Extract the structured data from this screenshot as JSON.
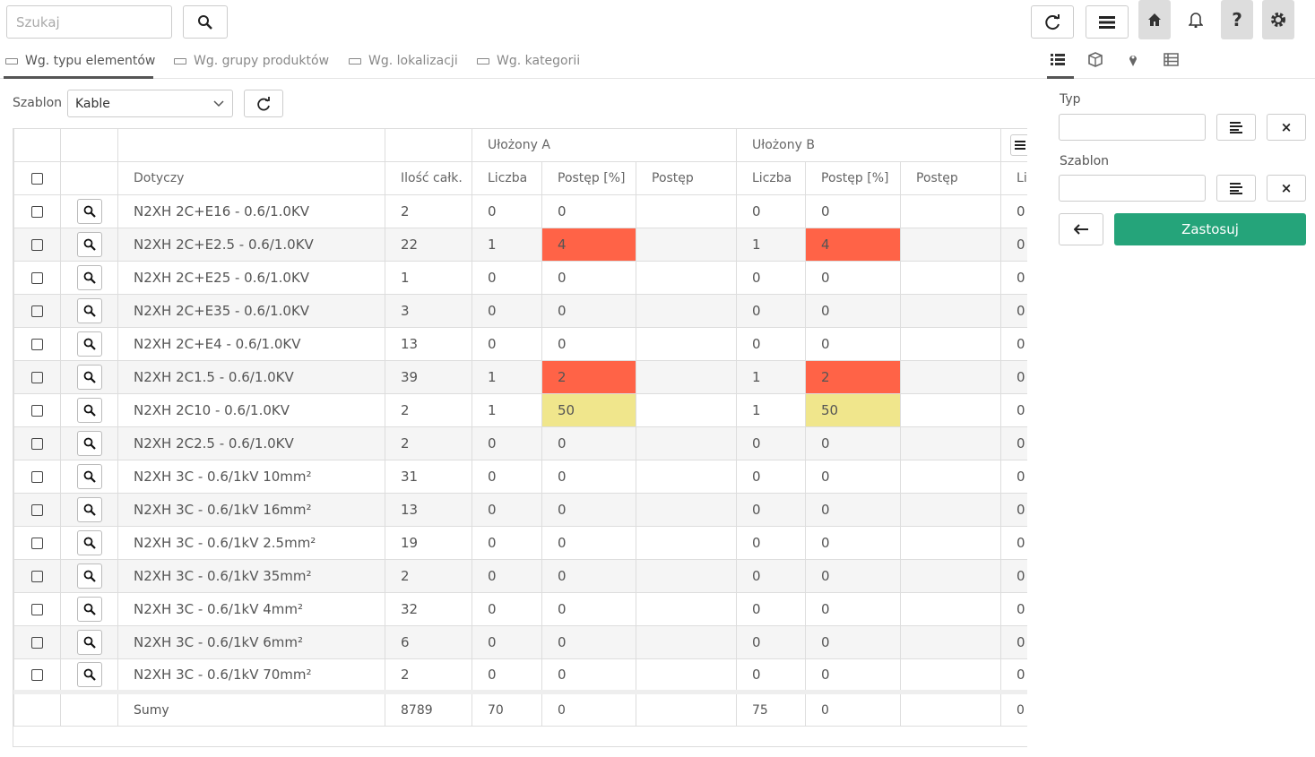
{
  "search": {
    "placeholder": "Szukaj"
  },
  "tabs": [
    "Wg. typu elementów",
    "Wg. grupy produktów",
    "Wg. lokalizacji",
    "Wg. kategorii"
  ],
  "template": {
    "label": "Szablon",
    "value": "Kable"
  },
  "table": {
    "group_headers": [
      "Ułożony A",
      "Ułożony B"
    ],
    "columns": [
      "Dotyczy",
      "Ilość całk.",
      "Liczba",
      "Postęp [%]",
      "Postęp",
      "Liczba",
      "Postęp [%]",
      "Postęp",
      "Li"
    ],
    "rows": [
      {
        "name": "N2XH 2C+E16 - 0.6/1.0KV",
        "total": 2,
        "a_count": 0,
        "a_pct": 0,
        "b_count": 0,
        "b_pct": 0,
        "next": 0
      },
      {
        "name": "N2XH 2C+E2.5 - 0.6/1.0KV",
        "total": 22,
        "a_count": 1,
        "a_pct": 4,
        "b_count": 1,
        "b_pct": 4,
        "next": 0
      },
      {
        "name": "N2XH 2C+E25 - 0.6/1.0KV",
        "total": 1,
        "a_count": 0,
        "a_pct": 0,
        "b_count": 0,
        "b_pct": 0,
        "next": 0
      },
      {
        "name": "N2XH 2C+E35 - 0.6/1.0KV",
        "total": 3,
        "a_count": 0,
        "a_pct": 0,
        "b_count": 0,
        "b_pct": 0,
        "next": 0
      },
      {
        "name": "N2XH 2C+E4 - 0.6/1.0KV",
        "total": 13,
        "a_count": 0,
        "a_pct": 0,
        "b_count": 0,
        "b_pct": 0,
        "next": 0
      },
      {
        "name": "N2XH 2C1.5 - 0.6/1.0KV",
        "total": 39,
        "a_count": 1,
        "a_pct": 2,
        "b_count": 1,
        "b_pct": 2,
        "next": 0
      },
      {
        "name": "N2XH 2C10 - 0.6/1.0KV",
        "total": 2,
        "a_count": 1,
        "a_pct": 50,
        "b_count": 1,
        "b_pct": 50,
        "next": 0
      },
      {
        "name": "N2XH 2C2.5 - 0.6/1.0KV",
        "total": 2,
        "a_count": 0,
        "a_pct": 0,
        "b_count": 0,
        "b_pct": 0,
        "next": 0
      },
      {
        "name": "N2XH 3C - 0.6/1kV 10mm²",
        "total": 31,
        "a_count": 0,
        "a_pct": 0,
        "b_count": 0,
        "b_pct": 0,
        "next": 0
      },
      {
        "name": "N2XH 3C - 0.6/1kV 16mm²",
        "total": 13,
        "a_count": 0,
        "a_pct": 0,
        "b_count": 0,
        "b_pct": 0,
        "next": 0
      },
      {
        "name": "N2XH 3C - 0.6/1kV 2.5mm²",
        "total": 19,
        "a_count": 0,
        "a_pct": 0,
        "b_count": 0,
        "b_pct": 0,
        "next": 0
      },
      {
        "name": "N2XH 3C - 0.6/1kV 35mm²",
        "total": 2,
        "a_count": 0,
        "a_pct": 0,
        "b_count": 0,
        "b_pct": 0,
        "next": 0
      },
      {
        "name": "N2XH 3C - 0.6/1kV 4mm²",
        "total": 32,
        "a_count": 0,
        "a_pct": 0,
        "b_count": 0,
        "b_pct": 0,
        "next": 0
      },
      {
        "name": "N2XH 3C - 0.6/1kV 6mm²",
        "total": 6,
        "a_count": 0,
        "a_pct": 0,
        "b_count": 0,
        "b_pct": 0,
        "next": 0
      },
      {
        "name": "N2XH 3C - 0.6/1kV 70mm²",
        "total": 2,
        "a_count": 0,
        "a_pct": 0,
        "b_count": 0,
        "b_pct": 0,
        "next": 0
      }
    ],
    "footer": {
      "label": "Sumy",
      "total": 8789,
      "a_count": 70,
      "a_pct": 0,
      "b_count": 75,
      "b_pct": 0,
      "next": 0
    }
  },
  "filters": {
    "type_label": "Typ",
    "template_label": "Szablon",
    "apply": "Zastosuj"
  }
}
